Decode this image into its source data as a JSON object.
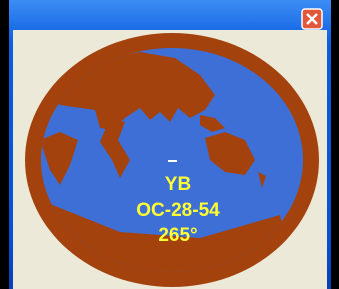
{
  "window": {
    "labels": {
      "callsign": "YB",
      "locator": "OC-28-54",
      "bearing": "265°"
    }
  }
}
